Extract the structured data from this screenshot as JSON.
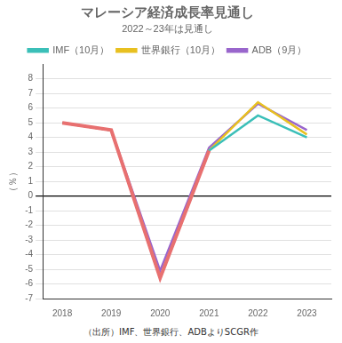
{
  "chart_data": {
    "type": "line",
    "title": "マレーシア経済成長率見通し",
    "subtitle": "2022～23年は見通し",
    "ylabel": "（％）",
    "source": "（出所）IMF、世界銀行、ADBよりSCGR作",
    "x": [
      2018,
      2019,
      2020,
      2021,
      2022,
      2023
    ],
    "series": [
      {
        "name": null,
        "color": "#e87070",
        "values": [
          5.0,
          4.5,
          -5.6,
          3.1,
          null,
          null
        ]
      },
      {
        "name": "IMF（10月）",
        "color": "#3bbfb8",
        "values": [
          5.0,
          4.5,
          -5.6,
          3.1,
          5.5,
          4.0
        ]
      },
      {
        "name": "世界銀行（10月）",
        "color": "#e8c020",
        "values": [
          5.0,
          4.5,
          -5.6,
          3.1,
          6.4,
          4.2
        ]
      },
      {
        "name": "ADB（9月）",
        "color": "#9966cc",
        "values": [
          5.0,
          4.5,
          -5.1,
          3.3,
          6.3,
          4.5
        ]
      }
    ],
    "xlim": [
      2017.6,
      2023.5
    ],
    "xticks": [
      2018,
      2019,
      2020,
      2021,
      2022,
      2023
    ],
    "ylim": [
      -7,
      9
    ],
    "yticks": [
      -7,
      -6,
      -5,
      -4,
      -3,
      -2,
      -1,
      0,
      1,
      2,
      3,
      4,
      5,
      6,
      7,
      8
    ],
    "grid": "y"
  }
}
